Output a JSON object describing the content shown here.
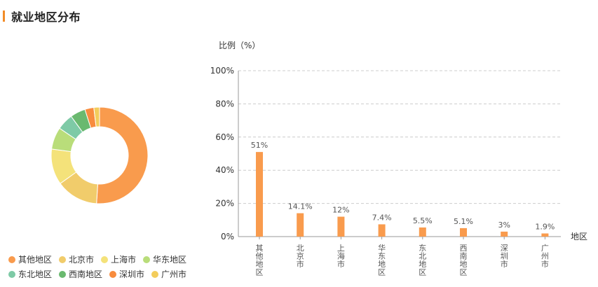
{
  "header": {
    "title": "就业地区分布"
  },
  "colors": {
    "accent": "#f28c28",
    "bar": "#f99b4d",
    "grid": "#cccccc",
    "axis": "#999999"
  },
  "chart_data": [
    {
      "type": "pie",
      "variant": "donut",
      "labels": [
        "其他地区",
        "北京市",
        "上海市",
        "华东地区",
        "东北地区",
        "西南地区",
        "深圳市",
        "广州市"
      ],
      "values": [
        51,
        14.1,
        12,
        7.4,
        5.5,
        5.1,
        3,
        1.9
      ],
      "colors": [
        "#f99b4d",
        "#f1cc6b",
        "#f4e27a",
        "#b9dd7a",
        "#7ecaa6",
        "#6ab96f",
        "#f88c3e",
        "#f3cd5c"
      ],
      "legend": "bottom"
    },
    {
      "type": "bar",
      "categories": [
        "其他地区",
        "北京市",
        "上海市",
        "华东地区",
        "东北地区",
        "西南地区",
        "深圳市",
        "广州市"
      ],
      "values": [
        51,
        14.1,
        12,
        7.4,
        5.5,
        5.1,
        3,
        1.9
      ],
      "value_labels": [
        "51%",
        "14.1%",
        "12%",
        "7.4%",
        "5.5%",
        "5.1%",
        "3%",
        "1.9%"
      ],
      "ylabel": "比例（%）",
      "xlabel": "地区",
      "ylim": [
        0,
        100
      ],
      "yticks": [
        "0%",
        "20%",
        "40%",
        "60%",
        "80%",
        "100%"
      ],
      "grid": true
    }
  ]
}
